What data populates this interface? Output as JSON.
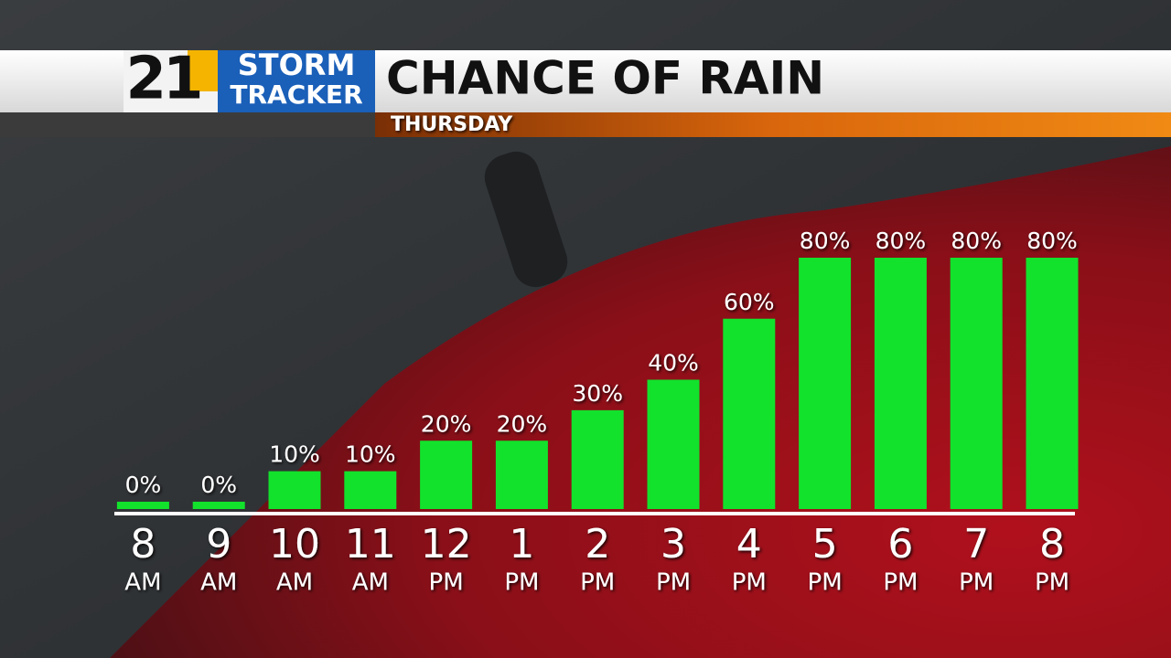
{
  "logo": {
    "number": "21",
    "line1": "STORM",
    "line2": "TRACKER"
  },
  "chart_data": {
    "type": "bar",
    "title": "CHANCE OF RAIN",
    "subtitle": "THURSDAY",
    "categories": [
      [
        "8",
        "AM"
      ],
      [
        "9",
        "AM"
      ],
      [
        "10",
        "AM"
      ],
      [
        "11",
        "AM"
      ],
      [
        "12",
        "PM"
      ],
      [
        "1",
        "PM"
      ],
      [
        "2",
        "PM"
      ],
      [
        "3",
        "PM"
      ],
      [
        "4",
        "PM"
      ],
      [
        "5",
        "PM"
      ],
      [
        "6",
        "PM"
      ],
      [
        "7",
        "PM"
      ],
      [
        "8",
        "PM"
      ]
    ],
    "values": [
      0,
      0,
      10,
      10,
      20,
      20,
      30,
      40,
      60,
      80,
      80,
      80,
      80
    ],
    "value_labels": [
      "0%",
      "0%",
      "10%",
      "10%",
      "20%",
      "20%",
      "30%",
      "40%",
      "60%",
      "80%",
      "80%",
      "80%",
      "80%"
    ],
    "color": "#12e22c",
    "ylim": [
      0,
      80
    ]
  }
}
